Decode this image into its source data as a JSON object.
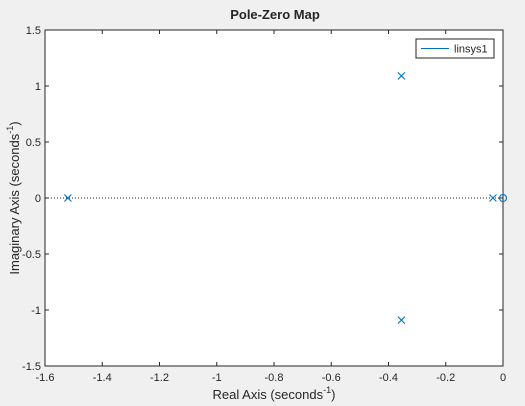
{
  "chart_data": {
    "type": "scatter",
    "title": "Pole-Zero Map",
    "xlabel": {
      "main": "Real Axis (seconds",
      "sup": "-1",
      "end": ")"
    },
    "ylabel": {
      "main": "Imaginary Axis (seconds",
      "sup": "-1",
      "end": ")"
    },
    "xlim": [
      -1.6,
      0
    ],
    "ylim": [
      -1.5,
      1.5
    ],
    "xticks": [
      -1.6,
      -1.4,
      -1.2,
      -1.0,
      -0.8,
      -0.6,
      -0.4,
      -0.2,
      0
    ],
    "xtick_labels": [
      "-1.6",
      "-1.4",
      "-1.2",
      "-1",
      "-0.8",
      "-0.6",
      "-0.4",
      "-0.2",
      "0"
    ],
    "yticks": [
      -1.5,
      -1.0,
      -0.5,
      0,
      0.5,
      1.0,
      1.5
    ],
    "ytick_labels": [
      "-1.5",
      "-1",
      "-0.5",
      "0",
      "0.5",
      "1",
      "1.5"
    ],
    "grid": false,
    "legend": {
      "position": "top-right",
      "entries": [
        "linsys1"
      ]
    },
    "series": [
      {
        "name": "linsys1",
        "color": "#0072bd",
        "poles": [
          {
            "re": -1.52,
            "im": 0
          },
          {
            "re": -0.355,
            "im": 1.09
          },
          {
            "re": -0.355,
            "im": -1.09
          },
          {
            "re": -0.035,
            "im": 0
          }
        ],
        "zeros": [
          {
            "re": 0,
            "im": 0
          }
        ]
      }
    ],
    "reference_line": {
      "im": 0,
      "style": "dotted"
    }
  }
}
